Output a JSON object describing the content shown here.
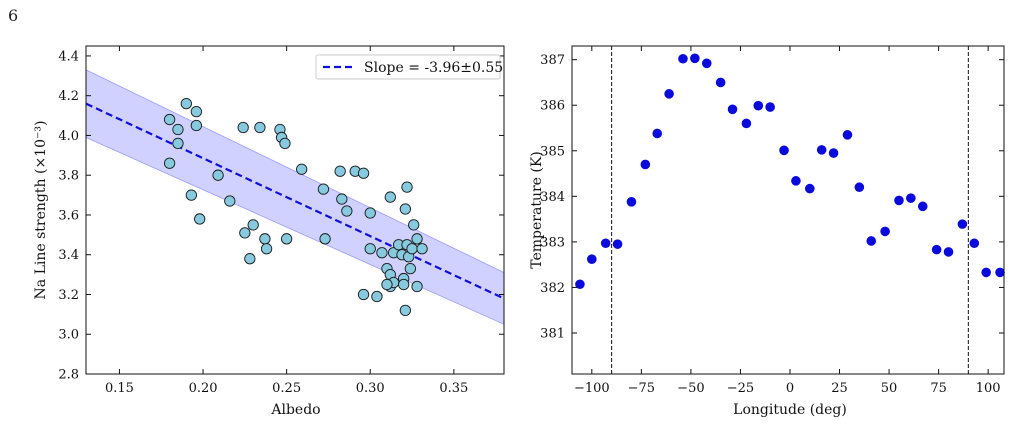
{
  "page_number": "6",
  "chart_data": [
    {
      "type": "scatter",
      "title": "",
      "xlabel": "Albedo",
      "ylabel": "Na Line strength (×10⁻³)",
      "xlim": [
        0.13,
        0.38
      ],
      "ylim": [
        2.8,
        4.45
      ],
      "xticks": [
        0.15,
        0.2,
        0.25,
        0.3,
        0.35
      ],
      "xtick_labels": [
        "0.15",
        "0.20",
        "0.25",
        "0.30",
        "0.35"
      ],
      "yticks": [
        2.8,
        3.0,
        3.2,
        3.4,
        3.6,
        3.8,
        4.0,
        4.2,
        4.4
      ],
      "ytick_labels": [
        "2.8",
        "3.0",
        "3.2",
        "3.4",
        "3.6",
        "3.8",
        "4.0",
        "4.2",
        "4.4"
      ],
      "legend": {
        "position": "top-right",
        "label": "Slope = -3.96±0.55"
      },
      "colors": {
        "points": "#87c9de",
        "point_edge": "#1a1a1a",
        "fit": "#1010dd",
        "band": "#c9c9ff"
      },
      "fit": {
        "slope": -3.96,
        "slope_err": 0.55,
        "x_range": [
          0.13,
          0.38
        ],
        "y_start": 4.16,
        "y_end": 3.18
      },
      "band": {
        "x": [
          0.13,
          0.38
        ],
        "upper": [
          4.33,
          3.31
        ],
        "lower": [
          3.99,
          3.05
        ]
      },
      "points": [
        [
          0.18,
          4.08
        ],
        [
          0.185,
          4.03
        ],
        [
          0.185,
          3.96
        ],
        [
          0.18,
          3.86
        ],
        [
          0.19,
          4.16
        ],
        [
          0.196,
          4.12
        ],
        [
          0.196,
          4.05
        ],
        [
          0.193,
          3.7
        ],
        [
          0.198,
          3.58
        ],
        [
          0.209,
          3.8
        ],
        [
          0.216,
          3.67
        ],
        [
          0.224,
          4.04
        ],
        [
          0.234,
          4.04
        ],
        [
          0.246,
          4.03
        ],
        [
          0.247,
          3.99
        ],
        [
          0.249,
          3.96
        ],
        [
          0.225,
          3.51
        ],
        [
          0.23,
          3.55
        ],
        [
          0.237,
          3.48
        ],
        [
          0.238,
          3.43
        ],
        [
          0.228,
          3.38
        ],
        [
          0.25,
          3.48
        ],
        [
          0.259,
          3.83
        ],
        [
          0.272,
          3.73
        ],
        [
          0.273,
          3.48
        ],
        [
          0.282,
          3.82
        ],
        [
          0.283,
          3.68
        ],
        [
          0.286,
          3.62
        ],
        [
          0.291,
          3.82
        ],
        [
          0.296,
          3.81
        ],
        [
          0.3,
          3.61
        ],
        [
          0.296,
          3.2
        ],
        [
          0.304,
          3.19
        ],
        [
          0.3,
          3.43
        ],
        [
          0.307,
          3.41
        ],
        [
          0.31,
          3.33
        ],
        [
          0.312,
          3.69
        ],
        [
          0.312,
          3.3
        ],
        [
          0.312,
          3.24
        ],
        [
          0.314,
          3.41
        ],
        [
          0.314,
          3.26
        ],
        [
          0.317,
          3.45
        ],
        [
          0.319,
          3.4
        ],
        [
          0.32,
          3.28
        ],
        [
          0.32,
          3.25
        ],
        [
          0.321,
          3.12
        ],
        [
          0.321,
          3.63
        ],
        [
          0.322,
          3.74
        ],
        [
          0.322,
          3.45
        ],
        [
          0.323,
          3.39
        ],
        [
          0.324,
          3.33
        ],
        [
          0.325,
          3.43
        ],
        [
          0.326,
          3.55
        ],
        [
          0.328,
          3.24
        ],
        [
          0.328,
          3.48
        ],
        [
          0.331,
          3.43
        ],
        [
          0.31,
          3.25
        ]
      ]
    },
    {
      "type": "scatter",
      "title": "",
      "xlabel": "Longitude (deg)",
      "ylabel": "Temperature (K)",
      "xlim": [
        -110,
        108
      ],
      "ylim": [
        380.1,
        387.3
      ],
      "xticks": [
        -100,
        -75,
        -50,
        -25,
        0,
        25,
        50,
        75,
        100
      ],
      "xtick_labels": [
        "−100",
        "−75",
        "−50",
        "−25",
        "0",
        "25",
        "50",
        "75",
        "100"
      ],
      "yticks": [
        381,
        382,
        383,
        384,
        385,
        386,
        387
      ],
      "ytick_labels": [
        "381",
        "382",
        "383",
        "384",
        "385",
        "386",
        "387"
      ],
      "vlines": [
        -90,
        90
      ],
      "colors": {
        "points": "#0a0adc",
        "vline": "#111111"
      },
      "points": [
        [
          -106,
          382.07
        ],
        [
          -100,
          382.62
        ],
        [
          -93,
          382.97
        ],
        [
          -87,
          382.95
        ],
        [
          -80,
          383.88
        ],
        [
          -73,
          384.7
        ],
        [
          -67,
          385.38
        ],
        [
          -61,
          386.25
        ],
        [
          -54,
          387.02
        ],
        [
          -48,
          387.03
        ],
        [
          -42,
          386.92
        ],
        [
          -35,
          386.5
        ],
        [
          -29,
          385.91
        ],
        [
          -22,
          385.6
        ],
        [
          -16,
          385.99
        ],
        [
          -10,
          385.96
        ],
        [
          -3,
          385.01
        ],
        [
          3,
          384.34
        ],
        [
          10,
          384.17
        ],
        [
          16,
          385.02
        ],
        [
          22,
          384.95
        ],
        [
          29,
          385.35
        ],
        [
          35,
          384.2
        ],
        [
          41,
          383.02
        ],
        [
          48,
          383.23
        ],
        [
          55,
          383.91
        ],
        [
          61,
          383.96
        ],
        [
          67,
          383.78
        ],
        [
          74,
          382.83
        ],
        [
          80,
          382.78
        ],
        [
          87,
          383.39
        ],
        [
          93,
          382.97
        ],
        [
          99,
          382.33
        ],
        [
          106,
          382.33
        ]
      ]
    }
  ]
}
